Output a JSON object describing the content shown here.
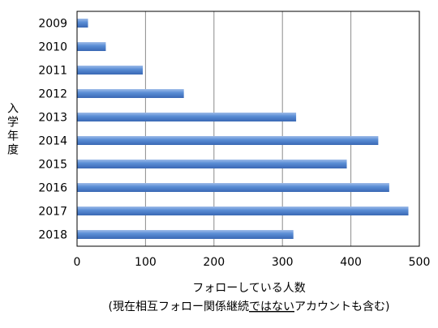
{
  "chart_data": {
    "type": "bar",
    "orientation": "horizontal",
    "categories": [
      "2009",
      "2010",
      "2011",
      "2012",
      "2013",
      "2014",
      "2015",
      "2016",
      "2017",
      "2018"
    ],
    "values": [
      16,
      42,
      96,
      156,
      320,
      440,
      394,
      456,
      484,
      316
    ],
    "xlim": [
      0,
      500
    ],
    "x_ticks": [
      0,
      100,
      200,
      300,
      400,
      500
    ],
    "ylabel": "入学年度",
    "xlabel": "フォローしている人数",
    "xlabel_sub_parts": [
      "(現在相互フォロー関係継続",
      "ではない",
      "アカウントも含む)"
    ],
    "grid": "vertical",
    "bar_color": "#4f81bd"
  }
}
